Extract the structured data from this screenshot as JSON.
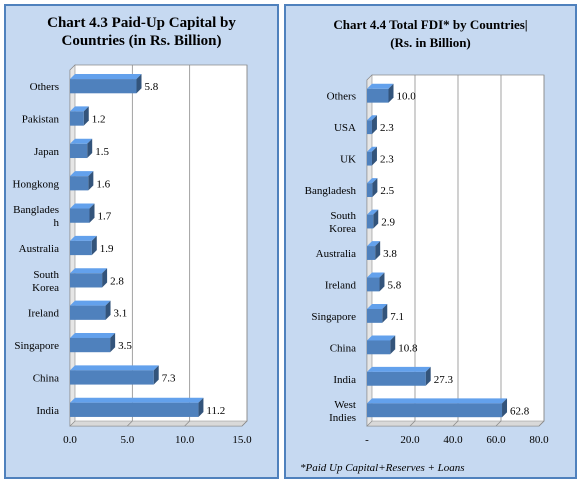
{
  "chart_data": [
    {
      "type": "bar",
      "orientation": "horizontal",
      "title_lines": [
        "Chart 4.3  Paid-Up Capital by",
        "Countries (in Rs. Billion)"
      ],
      "categories": [
        "Others",
        "Pakistan",
        "Japan",
        "Hongkong",
        "Banglades h",
        "Australia",
        "South Korea",
        "Ireland",
        "Singapore",
        "China",
        "India"
      ],
      "values": [
        5.8,
        1.2,
        1.5,
        1.6,
        1.7,
        1.9,
        2.8,
        3.1,
        3.5,
        7.3,
        11.2
      ],
      "value_labels": [
        "5.8",
        "1.2",
        "1.5",
        "1.6",
        "1.7",
        "1.9",
        "2.8",
        "3.1",
        "3.5",
        "7.3",
        "11.2"
      ],
      "xlim": [
        0,
        15
      ],
      "xticks": [
        "0.0",
        "5.0",
        "10.0",
        "15.0"
      ],
      "grid": true,
      "bar_color": "#4f81bd"
    },
    {
      "type": "bar",
      "orientation": "horizontal",
      "title_lines": [
        "Chart 4.4  Total FDI* by Countries|",
        "(Rs. in Billion)"
      ],
      "categories": [
        "Others",
        "USA",
        "UK",
        "Bangladesh",
        "South Korea",
        "Australia",
        "Ireland",
        "Singapore",
        "China",
        "India",
        "West Indies"
      ],
      "values": [
        10.0,
        2.3,
        2.3,
        2.5,
        2.9,
        3.8,
        5.8,
        7.1,
        10.8,
        27.3,
        62.8
      ],
      "value_labels": [
        "10.0",
        "2.3",
        "2.3",
        "2.5",
        "2.9",
        "3.8",
        "5.8",
        "7.1",
        "10.8",
        "27.3",
        "62.8"
      ],
      "xlim": [
        0,
        80
      ],
      "xticks": [
        "-",
        "20.0",
        "40.0",
        "60.0",
        "80.0"
      ],
      "grid": true,
      "bar_color": "#4f81bd",
      "footnote": "*Paid Up Capital+Reserves + Loans"
    }
  ]
}
